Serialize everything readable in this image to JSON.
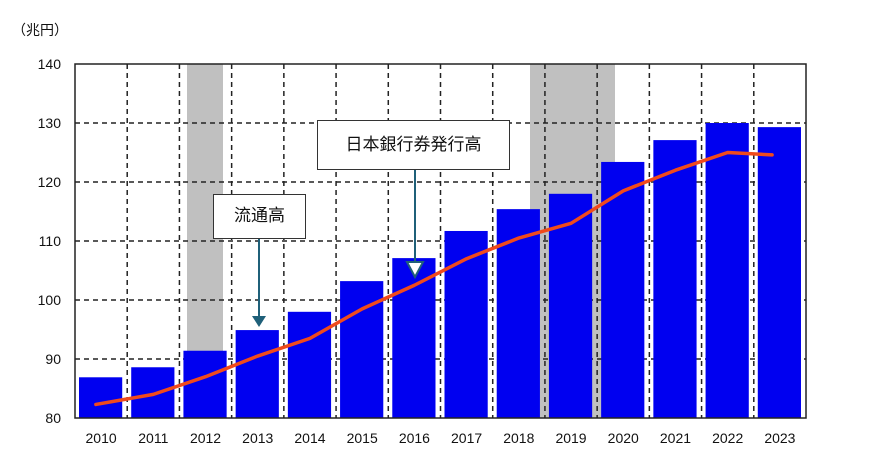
{
  "unit_label": "（兆円）",
  "callouts": {
    "circulation": "流通高",
    "issued": "日本銀行券発行高"
  },
  "colors": {
    "bar": "#0000f0",
    "line": "#f04a1c",
    "shade": "#c0c0c0",
    "arrow": "#1f6079"
  },
  "chart_data": {
    "type": "bar",
    "title": "",
    "xlabel": "",
    "ylabel": "兆円",
    "ylim": [
      80,
      140
    ],
    "yticks": [
      80,
      90,
      100,
      110,
      120,
      130,
      140
    ],
    "grid": true,
    "categories": [
      "2010",
      "2011",
      "2012",
      "2013",
      "2014",
      "2015",
      "2016",
      "2017",
      "2018",
      "2019",
      "2020",
      "2021",
      "2022",
      "2023"
    ],
    "series": [
      {
        "name": "日本銀行券発行高",
        "type": "bar",
        "values": [
          86.9,
          88.6,
          91.4,
          94.9,
          98.0,
          103.2,
          107.1,
          111.7,
          115.4,
          118.0,
          123.4,
          127.1,
          130.0,
          129.3
        ]
      },
      {
        "name": "流通高",
        "type": "line",
        "values": [
          82.3,
          84.0,
          87.0,
          90.5,
          93.5,
          98.5,
          102.5,
          107.0,
          110.5,
          113.0,
          118.5,
          122.0,
          125.0,
          124.6
        ]
      }
    ],
    "shaded_periods": [
      {
        "from_category": "2012",
        "note": "partial shade over 2012 bar"
      },
      {
        "from_category": "2019",
        "note": "shade spanning 2019 bar"
      }
    ],
    "annotations": [
      {
        "text": "流通高",
        "points_to": "2013"
      },
      {
        "text": "日本銀行券発行高",
        "points_to": "2016"
      }
    ]
  }
}
